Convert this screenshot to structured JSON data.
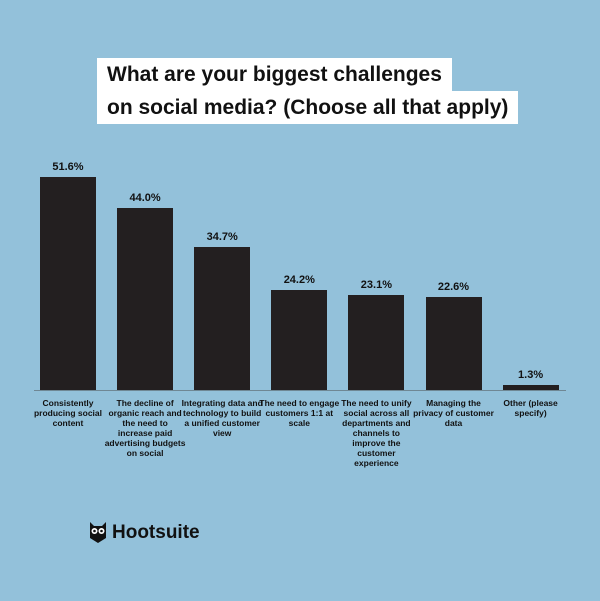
{
  "chart_data": {
    "type": "bar",
    "title_lines": [
      "What are your biggest challenges",
      "on social media? (Choose all that apply)"
    ],
    "categories": [
      "Consistently producing social content",
      "The decline of organic reach and the need to increase paid advertising budgets on social",
      "Integrating data and technology to build a unified customer view",
      "The need to engage customers 1:1 at scale",
      "The need to unify social across all departments and channels to improve the customer experience",
      "Managing the privacy of customer data",
      "Other (please specify)"
    ],
    "values": [
      51.6,
      44.0,
      34.7,
      24.2,
      23.1,
      22.6,
      1.3
    ],
    "value_labels": [
      "51.6%",
      "44.0%",
      "34.7%",
      "24.2%",
      "23.1%",
      "22.6%",
      "1.3%"
    ],
    "color": "#231f20"
  },
  "brand": "Hootsuite"
}
